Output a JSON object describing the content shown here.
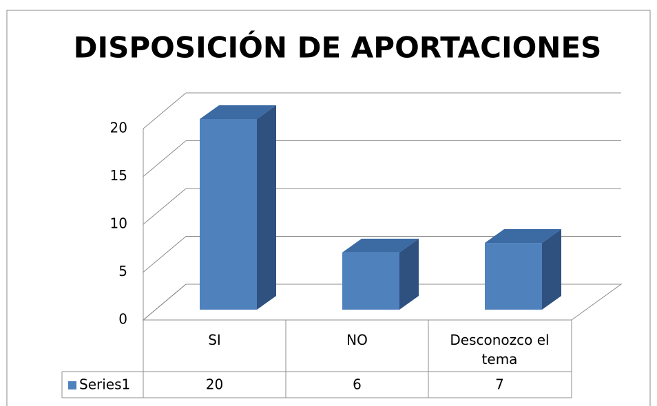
{
  "chart_data": {
    "type": "bar",
    "title": "DISPOSICIÓN DE APORTACIONES",
    "categories": [
      "SI",
      "NO",
      "Desconozco el tema"
    ],
    "series": [
      {
        "name": "Series1",
        "color": "#4f81bd",
        "values": [
          20,
          6,
          7
        ]
      }
    ],
    "ylim": [
      0,
      20
    ],
    "yticks": [
      0,
      5,
      10,
      15,
      20
    ],
    "grid": true
  }
}
